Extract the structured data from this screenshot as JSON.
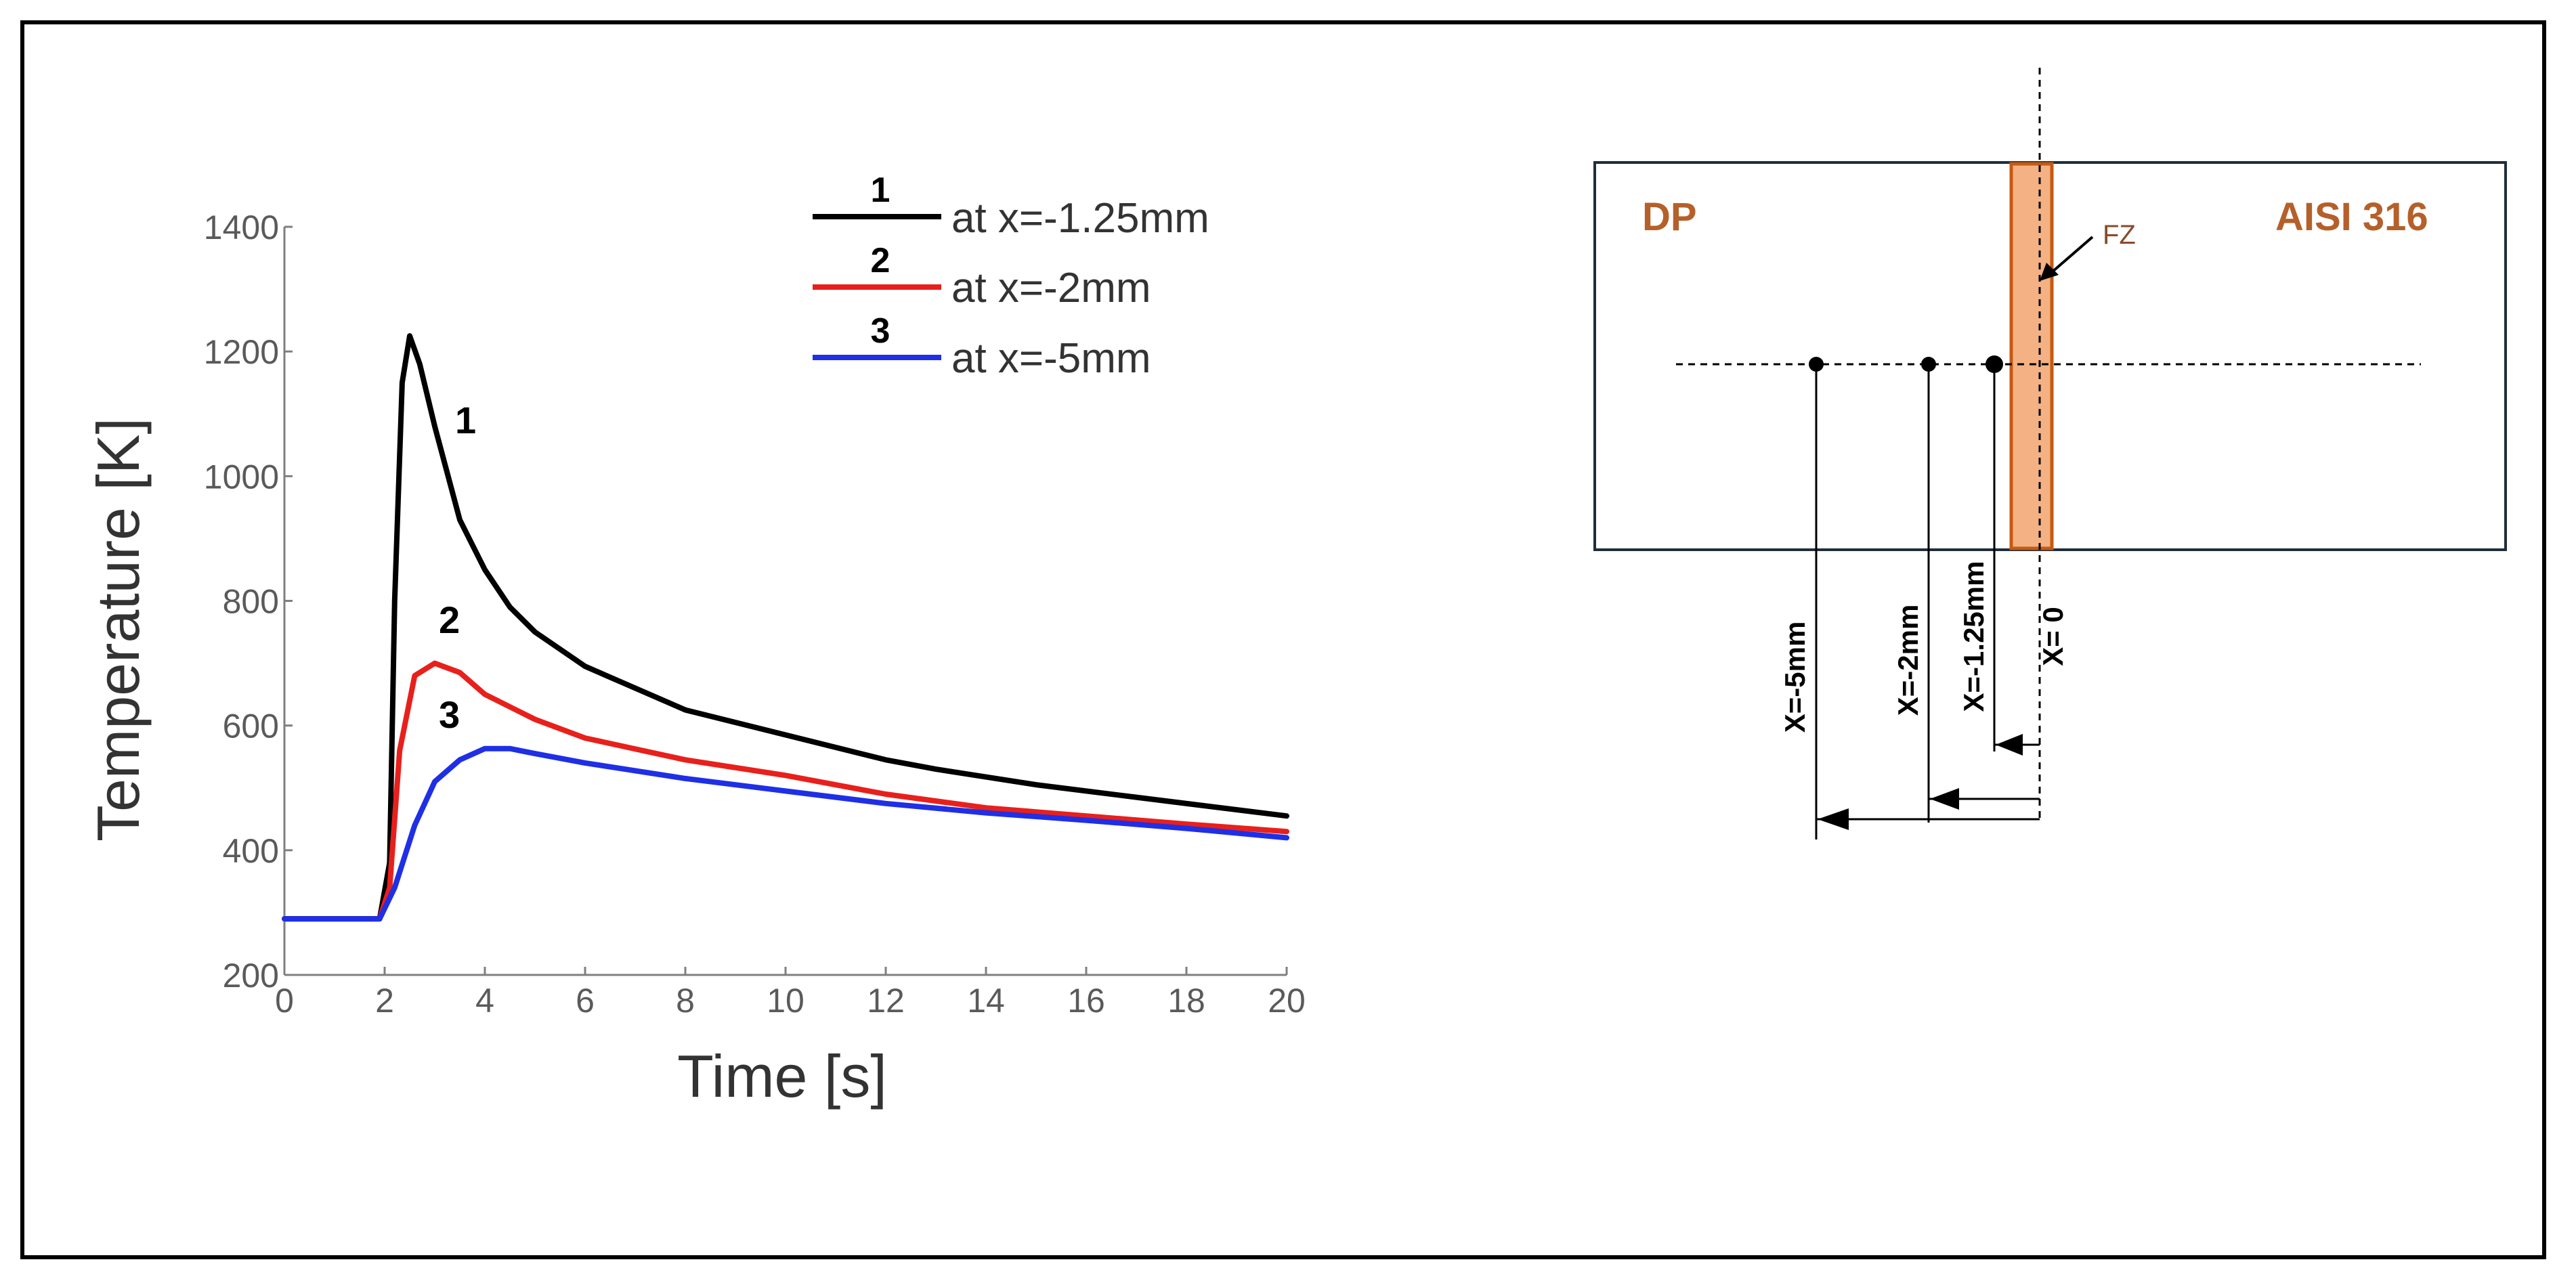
{
  "chart_data": {
    "type": "line",
    "xlabel": "Time [s]",
    "ylabel": "Temperature [K]",
    "xlim": [
      0,
      20
    ],
    "ylim": [
      200,
      1400
    ],
    "xticks": [
      "0",
      "2",
      "4",
      "6",
      "8",
      "10",
      "12",
      "14",
      "16",
      "18",
      "20"
    ],
    "yticks": [
      "200",
      "400",
      "600",
      "800",
      "1000",
      "1200",
      "1400"
    ],
    "legend": [
      {
        "number": "1",
        "label": "at x=-1.25mm",
        "color": "#000000"
      },
      {
        "number": "2",
        "label": "at x=-2mm",
        "color": "#e8201c"
      },
      {
        "number": "3",
        "label": "at x=-5mm",
        "color": "#1f2fe6"
      }
    ],
    "series": [
      {
        "name": "at x=-1.25mm",
        "label": "1",
        "color": "#000000",
        "x": [
          0,
          1.9,
          2.1,
          2.2,
          2.35,
          2.5,
          2.7,
          3.0,
          3.5,
          4.0,
          4.5,
          5,
          6,
          8,
          10,
          12,
          13,
          15,
          17,
          20
        ],
        "y": [
          290,
          290,
          380,
          800,
          1150,
          1225,
          1180,
          1080,
          930,
          850,
          790,
          750,
          695,
          625,
          585,
          545,
          530,
          505,
          485,
          455
        ]
      },
      {
        "name": "at x=-2mm",
        "label": "2",
        "color": "#e8201c",
        "x": [
          0,
          1.9,
          2.1,
          2.3,
          2.6,
          3.0,
          3.5,
          4.0,
          5,
          6,
          8,
          10,
          12,
          14,
          16,
          18,
          20
        ],
        "y": [
          290,
          290,
          340,
          560,
          680,
          700,
          685,
          650,
          610,
          580,
          545,
          520,
          490,
          468,
          455,
          442,
          430
        ]
      },
      {
        "name": "at x=-5mm",
        "label": "3",
        "color": "#1f2fe6",
        "x": [
          0,
          1.9,
          2.2,
          2.6,
          3.0,
          3.5,
          4.0,
          4.5,
          5,
          6,
          8,
          10,
          12,
          14,
          16,
          18,
          20
        ],
        "y": [
          290,
          290,
          340,
          440,
          510,
          545,
          563,
          563,
          555,
          540,
          515,
          495,
          475,
          460,
          448,
          435,
          420
        ]
      }
    ],
    "curve_labels": [
      "1",
      "2",
      "3"
    ]
  },
  "diagram": {
    "left_material": "DP",
    "right_material": "AISI 316",
    "zone_label": "FZ",
    "zone_color": "#f4b183",
    "zone_border": "#c55a11",
    "positions": [
      "X=-5mm",
      "X=-2mm",
      "X=-1.25mm",
      "X= 0"
    ]
  }
}
